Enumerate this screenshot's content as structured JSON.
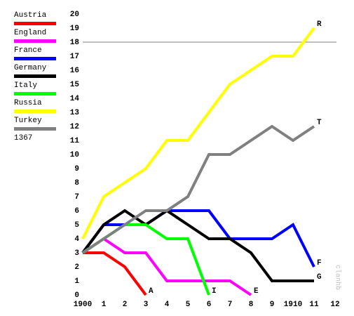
{
  "chart_data": {
    "type": "line",
    "x": [
      1900,
      1901,
      1902,
      1903,
      1904,
      1905,
      1906,
      1907,
      1908,
      1909,
      1910,
      1911
    ],
    "xlim": [
      1900,
      1912
    ],
    "xticks": [
      {
        "value": 1900,
        "label": "1900"
      },
      {
        "value": 1901,
        "label": "1"
      },
      {
        "value": 1902,
        "label": "2"
      },
      {
        "value": 1903,
        "label": "3"
      },
      {
        "value": 1904,
        "label": "4"
      },
      {
        "value": 1905,
        "label": "5"
      },
      {
        "value": 1906,
        "label": "6"
      },
      {
        "value": 1907,
        "label": "7"
      },
      {
        "value": 1908,
        "label": "8"
      },
      {
        "value": 1909,
        "label": "9"
      },
      {
        "value": 1910,
        "label": "1910"
      },
      {
        "value": 1911,
        "label": "11"
      },
      {
        "value": 1912,
        "label": "12"
      }
    ],
    "ylim": [
      0,
      20
    ],
    "yticks": [
      0,
      1,
      2,
      3,
      4,
      5,
      6,
      7,
      8,
      9,
      10,
      11,
      12,
      13,
      14,
      15,
      16,
      17,
      18,
      19,
      20
    ],
    "reference_line": 18,
    "legend_note": "1367",
    "watermark": "clanhb",
    "series": [
      {
        "name": "Austria",
        "color": "#ff0000",
        "end_label": "A",
        "values": [
          3,
          3,
          2,
          0,
          null,
          null,
          null,
          null,
          null,
          null,
          null,
          null
        ]
      },
      {
        "name": "England",
        "color": "#ff00ff",
        "end_label": "E",
        "values": [
          3,
          4,
          3,
          3,
          1,
          1,
          1,
          1,
          0,
          null,
          null,
          null
        ]
      },
      {
        "name": "France",
        "color": "#0000ff",
        "end_label": "F",
        "values": [
          3,
          5,
          5,
          5,
          6,
          6,
          6,
          4,
          4,
          4,
          5,
          2
        ]
      },
      {
        "name": "Germany",
        "color": "#000000",
        "end_label": "G",
        "values": [
          3,
          5,
          6,
          5,
          6,
          5,
          4,
          4,
          3,
          1,
          1,
          1
        ]
      },
      {
        "name": "Italy",
        "color": "#00ff00",
        "end_label": "I",
        "values": [
          3,
          4,
          5,
          5,
          4,
          4,
          0,
          null,
          null,
          null,
          null,
          null
        ]
      },
      {
        "name": "Russia",
        "color": "#ffff00",
        "end_label": "R",
        "values": [
          4,
          7,
          8,
          9,
          11,
          11,
          13,
          15,
          16,
          17,
          17,
          19
        ]
      },
      {
        "name": "Turkey",
        "color": "#808080",
        "end_label": "T",
        "values": [
          3,
          4,
          5,
          6,
          6,
          7,
          10,
          10,
          11,
          12,
          11,
          12
        ]
      }
    ]
  }
}
